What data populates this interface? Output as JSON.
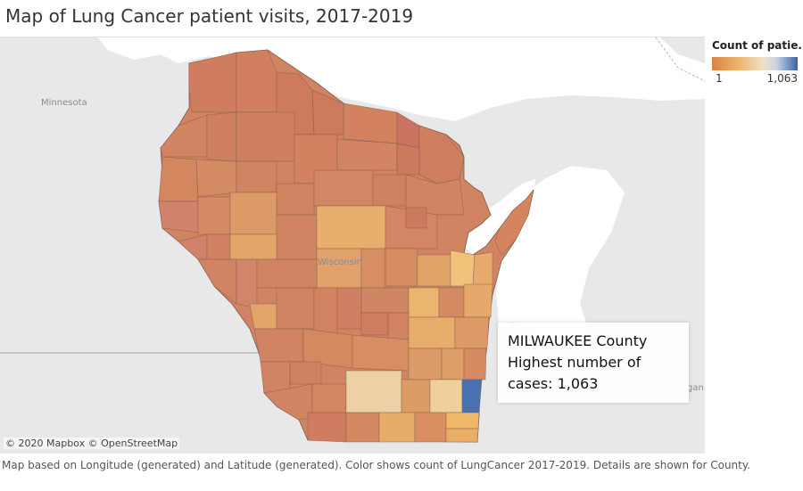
{
  "title": "Map of Lung Cancer patient visits, 2017-2019",
  "legend": {
    "title": "Count of patie..",
    "min_label": "1",
    "max_label": "1,063",
    "scale_colors": [
      "#d9823f",
      "#efb46c",
      "#eedfc8",
      "#c9d4e6",
      "#3a64a8"
    ]
  },
  "map": {
    "attribution": "© 2020 Mapbox © OpenStreetMap",
    "place_labels": {
      "minnesota": "Minnesota",
      "wisconsin": "Wisconsin",
      "michigan": "Michigan"
    },
    "colors": {
      "land": "#e8e8e8",
      "water": "#ffffff",
      "default_county": "#d18462",
      "highlight_county": "#4a72b0"
    }
  },
  "callout": {
    "line1": "MILWAUKEE County",
    "line2": "Highest number of",
    "line3": "cases: 1,063"
  },
  "footnote": "Map based on Longitude (generated) and Latitude (generated).  Color shows count of LungCancer 2017-2019.  Details are shown for County."
}
